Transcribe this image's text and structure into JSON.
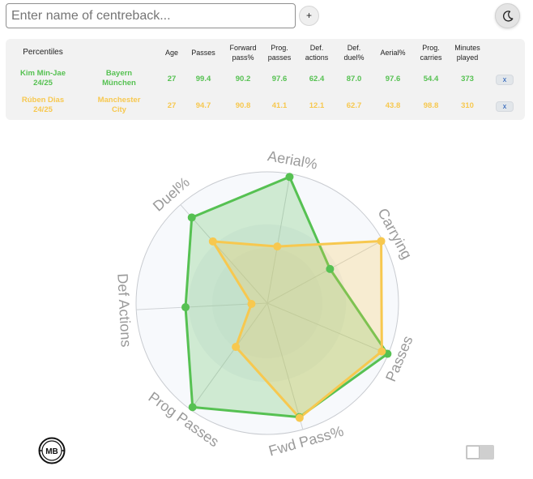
{
  "search": {
    "placeholder": "Enter name of centreback..."
  },
  "add_label": "+",
  "remove_label": "x",
  "table": {
    "headers": {
      "percentiles": "Percentiles",
      "age": "Age",
      "passes": "Passes",
      "fwd_pass": [
        "Forward",
        "pass%"
      ],
      "prog_passes": [
        "Prog.",
        "passes"
      ],
      "def_actions": [
        "Def.",
        "actions"
      ],
      "def_duel": [
        "Def.",
        "duel%"
      ],
      "aerial": "Aerial%",
      "prog_carries": [
        "Prog.",
        "carries"
      ],
      "minutes": [
        "Minutes",
        "played"
      ]
    },
    "rows": [
      {
        "name": [
          "Kim Min-Jae",
          "24/25"
        ],
        "club": [
          "Bayern",
          "München"
        ],
        "values": [
          "27",
          "99.4",
          "90.2",
          "97.6",
          "62.4",
          "87.0",
          "97.6",
          "54.4",
          "373"
        ],
        "color": "#56c152"
      },
      {
        "name": [
          "Rúben Dias",
          "24/25"
        ],
        "club": [
          "Manchester",
          "City"
        ],
        "values": [
          "27",
          "94.7",
          "90.8",
          "41.1",
          "12.1",
          "62.7",
          "43.8",
          "98.8",
          "310"
        ],
        "color": "#f7c84f"
      }
    ]
  },
  "radar": {
    "axes": [
      "Aerial%",
      "Carrying",
      "Passes",
      "Fwd Pass%",
      "Prog Passes",
      "Def Actions",
      "Duel%"
    ],
    "max": 100,
    "series": [
      {
        "values": [
          97.6,
          54.4,
          99.4,
          90.2,
          97.6,
          62.4,
          87.0
        ],
        "color": "#56c152"
      },
      {
        "values": [
          43.8,
          98.8,
          94.7,
          90.8,
          41.1,
          12.1,
          62.7
        ],
        "color": "#f7c84f"
      }
    ]
  },
  "logo_text": "MB"
}
